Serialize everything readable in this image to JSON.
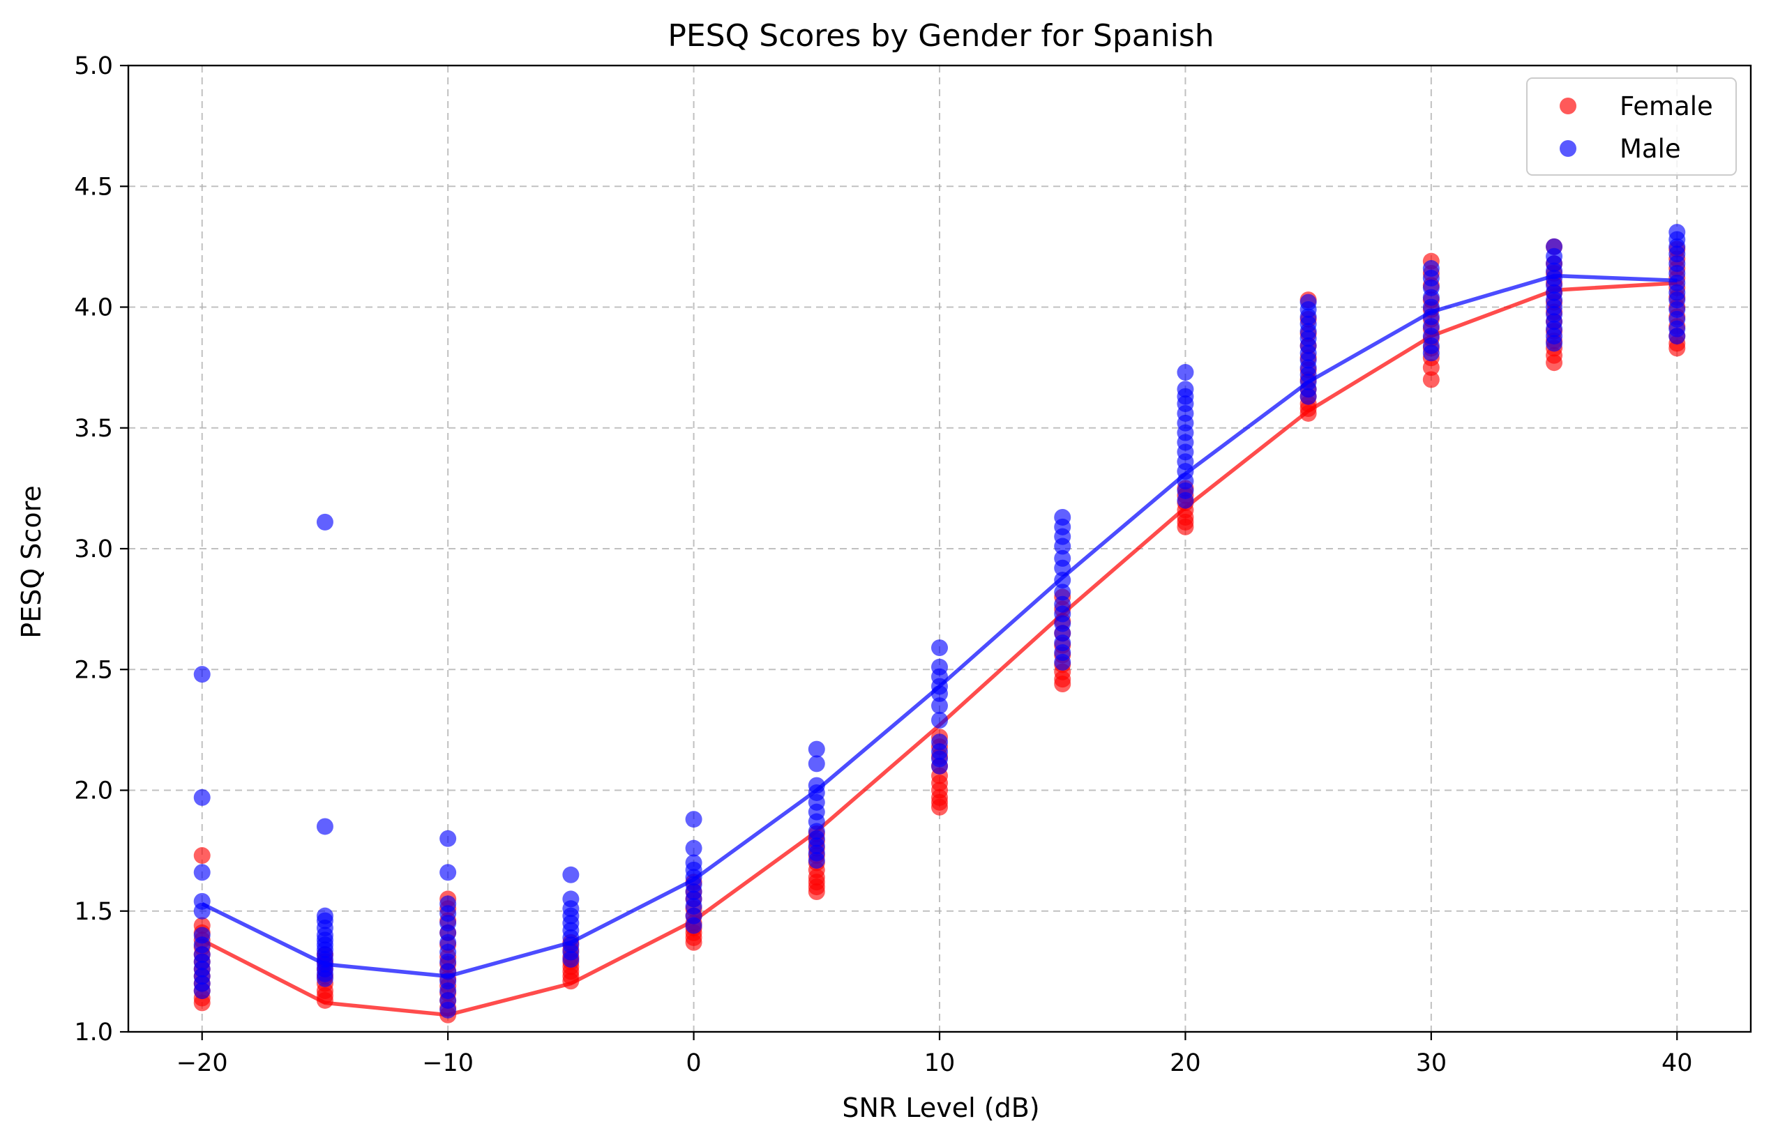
{
  "chart_data": {
    "type": "scatter",
    "title": "PESQ Scores by Gender for Spanish",
    "xlabel": "SNR Level (dB)",
    "ylabel": "PESQ Score",
    "xlim": [
      -23,
      43
    ],
    "ylim": [
      1.0,
      5.0
    ],
    "x_ticks": [
      -20,
      -10,
      0,
      10,
      20,
      30,
      40
    ],
    "x_tick_labels": [
      "−20",
      "−10",
      "0",
      "10",
      "20",
      "30",
      "40"
    ],
    "y_ticks": [
      1.0,
      1.5,
      2.0,
      2.5,
      3.0,
      3.5,
      4.0,
      4.5,
      5.0
    ],
    "y_tick_labels": [
      "1.0",
      "1.5",
      "2.0",
      "2.5",
      "3.0",
      "3.5",
      "4.0",
      "4.5",
      "5.0"
    ],
    "grid": true,
    "legend_position": "top-right",
    "series": [
      {
        "name": "Female",
        "color": "#ff0000",
        "mean_x": [
          -20,
          -15,
          -10,
          -5,
          0,
          5,
          10,
          15,
          20,
          25,
          30,
          35,
          40
        ],
        "mean_y": [
          1.38,
          1.12,
          1.07,
          1.2,
          1.46,
          1.83,
          2.27,
          2.73,
          3.17,
          3.57,
          3.88,
          4.07,
          4.1
        ],
        "points": [
          [
            -20,
            1.12
          ],
          [
            -20,
            1.14
          ],
          [
            -20,
            1.17
          ],
          [
            -20,
            1.2
          ],
          [
            -20,
            1.23
          ],
          [
            -20,
            1.26
          ],
          [
            -20,
            1.29
          ],
          [
            -20,
            1.32
          ],
          [
            -20,
            1.35
          ],
          [
            -20,
            1.38
          ],
          [
            -20,
            1.41
          ],
          [
            -20,
            1.44
          ],
          [
            -20,
            1.73
          ],
          [
            -15,
            1.13
          ],
          [
            -15,
            1.15
          ],
          [
            -15,
            1.17
          ],
          [
            -15,
            1.2
          ],
          [
            -15,
            1.23
          ],
          [
            -15,
            1.26
          ],
          [
            -15,
            1.29
          ],
          [
            -15,
            1.32
          ],
          [
            -10,
            1.07
          ],
          [
            -10,
            1.1
          ],
          [
            -10,
            1.13
          ],
          [
            -10,
            1.16
          ],
          [
            -10,
            1.19
          ],
          [
            -10,
            1.22
          ],
          [
            -10,
            1.25
          ],
          [
            -10,
            1.28
          ],
          [
            -10,
            1.31
          ],
          [
            -10,
            1.36
          ],
          [
            -10,
            1.41
          ],
          [
            -10,
            1.46
          ],
          [
            -10,
            1.51
          ],
          [
            -10,
            1.55
          ],
          [
            -5,
            1.21
          ],
          [
            -5,
            1.23
          ],
          [
            -5,
            1.25
          ],
          [
            -5,
            1.27
          ],
          [
            -5,
            1.29
          ],
          [
            -5,
            1.31
          ],
          [
            -5,
            1.34
          ],
          [
            -5,
            1.37
          ],
          [
            0,
            1.37
          ],
          [
            0,
            1.39
          ],
          [
            0,
            1.41
          ],
          [
            0,
            1.43
          ],
          [
            0,
            1.45
          ],
          [
            0,
            1.48
          ],
          [
            0,
            1.51
          ],
          [
            0,
            1.55
          ],
          [
            0,
            1.58
          ],
          [
            0,
            1.62
          ],
          [
            5,
            1.58
          ],
          [
            5,
            1.6
          ],
          [
            5,
            1.62
          ],
          [
            5,
            1.64
          ],
          [
            5,
            1.67
          ],
          [
            5,
            1.7
          ],
          [
            5,
            1.73
          ],
          [
            5,
            1.76
          ],
          [
            5,
            1.79
          ],
          [
            5,
            1.82
          ],
          [
            10,
            1.93
          ],
          [
            10,
            1.95
          ],
          [
            10,
            1.97
          ],
          [
            10,
            2.0
          ],
          [
            10,
            2.03
          ],
          [
            10,
            2.06
          ],
          [
            10,
            2.1
          ],
          [
            10,
            2.14
          ],
          [
            10,
            2.18
          ],
          [
            10,
            2.22
          ],
          [
            15,
            2.44
          ],
          [
            15,
            2.46
          ],
          [
            15,
            2.49
          ],
          [
            15,
            2.52
          ],
          [
            15,
            2.56
          ],
          [
            15,
            2.6
          ],
          [
            15,
            2.65
          ],
          [
            15,
            2.7
          ],
          [
            15,
            2.75
          ],
          [
            15,
            2.8
          ],
          [
            20,
            3.09
          ],
          [
            20,
            3.11
          ],
          [
            20,
            3.13
          ],
          [
            20,
            3.16
          ],
          [
            20,
            3.19
          ],
          [
            20,
            3.22
          ],
          [
            20,
            3.25
          ],
          [
            25,
            3.56
          ],
          [
            25,
            3.58
          ],
          [
            25,
            3.6
          ],
          [
            25,
            3.63
          ],
          [
            25,
            3.66
          ],
          [
            25,
            3.7
          ],
          [
            25,
            3.74
          ],
          [
            25,
            3.79
          ],
          [
            25,
            3.84
          ],
          [
            25,
            3.89
          ],
          [
            25,
            3.95
          ],
          [
            25,
            4.03
          ],
          [
            30,
            3.7
          ],
          [
            30,
            3.75
          ],
          [
            30,
            3.79
          ],
          [
            30,
            3.83
          ],
          [
            30,
            3.87
          ],
          [
            30,
            3.91
          ],
          [
            30,
            3.95
          ],
          [
            30,
            3.99
          ],
          [
            30,
            4.03
          ],
          [
            30,
            4.09
          ],
          [
            30,
            4.14
          ],
          [
            30,
            4.19
          ],
          [
            35,
            3.77
          ],
          [
            35,
            3.8
          ],
          [
            35,
            3.83
          ],
          [
            35,
            3.86
          ],
          [
            35,
            3.9
          ],
          [
            35,
            3.94
          ],
          [
            35,
            3.98
          ],
          [
            35,
            4.02
          ],
          [
            35,
            4.06
          ],
          [
            35,
            4.1
          ],
          [
            35,
            4.14
          ],
          [
            35,
            4.18
          ],
          [
            35,
            4.25
          ],
          [
            40,
            3.83
          ],
          [
            40,
            3.85
          ],
          [
            40,
            3.88
          ],
          [
            40,
            3.92
          ],
          [
            40,
            3.96
          ],
          [
            40,
            4.0
          ],
          [
            40,
            4.04
          ],
          [
            40,
            4.08
          ],
          [
            40,
            4.12
          ],
          [
            40,
            4.16
          ],
          [
            40,
            4.2
          ],
          [
            40,
            4.24
          ]
        ]
      },
      {
        "name": "Male",
        "color": "#0000ff",
        "mean_x": [
          -20,
          -15,
          -10,
          -5,
          0,
          5,
          10,
          15,
          20,
          25,
          30,
          35,
          40
        ],
        "mean_y": [
          1.53,
          1.28,
          1.23,
          1.37,
          1.63,
          2.0,
          2.43,
          2.88,
          3.31,
          3.69,
          3.98,
          4.13,
          4.11
        ],
        "points": [
          [
            -20,
            1.17
          ],
          [
            -20,
            1.2
          ],
          [
            -20,
            1.23
          ],
          [
            -20,
            1.26
          ],
          [
            -20,
            1.29
          ],
          [
            -20,
            1.32
          ],
          [
            -20,
            1.36
          ],
          [
            -20,
            1.4
          ],
          [
            -20,
            1.5
          ],
          [
            -20,
            1.54
          ],
          [
            -20,
            1.66
          ],
          [
            -20,
            1.97
          ],
          [
            -20,
            2.48
          ],
          [
            -15,
            1.22
          ],
          [
            -15,
            1.24
          ],
          [
            -15,
            1.26
          ],
          [
            -15,
            1.28
          ],
          [
            -15,
            1.3
          ],
          [
            -15,
            1.32
          ],
          [
            -15,
            1.34
          ],
          [
            -15,
            1.36
          ],
          [
            -15,
            1.38
          ],
          [
            -15,
            1.4
          ],
          [
            -15,
            1.43
          ],
          [
            -15,
            1.46
          ],
          [
            -15,
            1.48
          ],
          [
            -15,
            1.85
          ],
          [
            -15,
            3.11
          ],
          [
            -10,
            1.09
          ],
          [
            -10,
            1.13
          ],
          [
            -10,
            1.17
          ],
          [
            -10,
            1.21
          ],
          [
            -10,
            1.25
          ],
          [
            -10,
            1.29
          ],
          [
            -10,
            1.33
          ],
          [
            -10,
            1.37
          ],
          [
            -10,
            1.41
          ],
          [
            -10,
            1.45
          ],
          [
            -10,
            1.49
          ],
          [
            -10,
            1.53
          ],
          [
            -10,
            1.66
          ],
          [
            -10,
            1.8
          ],
          [
            -5,
            1.3
          ],
          [
            -5,
            1.33
          ],
          [
            -5,
            1.36
          ],
          [
            -5,
            1.39
          ],
          [
            -5,
            1.42
          ],
          [
            -5,
            1.45
          ],
          [
            -5,
            1.48
          ],
          [
            -5,
            1.51
          ],
          [
            -5,
            1.55
          ],
          [
            -5,
            1.65
          ],
          [
            0,
            1.44
          ],
          [
            0,
            1.48
          ],
          [
            0,
            1.52
          ],
          [
            0,
            1.55
          ],
          [
            0,
            1.58
          ],
          [
            0,
            1.61
          ],
          [
            0,
            1.64
          ],
          [
            0,
            1.67
          ],
          [
            0,
            1.7
          ],
          [
            0,
            1.76
          ],
          [
            0,
            1.88
          ],
          [
            5,
            1.71
          ],
          [
            5,
            1.74
          ],
          [
            5,
            1.77
          ],
          [
            5,
            1.8
          ],
          [
            5,
            1.83
          ],
          [
            5,
            1.87
          ],
          [
            5,
            1.91
          ],
          [
            5,
            1.95
          ],
          [
            5,
            1.99
          ],
          [
            5,
            2.02
          ],
          [
            5,
            2.11
          ],
          [
            5,
            2.17
          ],
          [
            10,
            2.1
          ],
          [
            10,
            2.13
          ],
          [
            10,
            2.16
          ],
          [
            10,
            2.2
          ],
          [
            10,
            2.29
          ],
          [
            10,
            2.35
          ],
          [
            10,
            2.4
          ],
          [
            10,
            2.43
          ],
          [
            10,
            2.47
          ],
          [
            10,
            2.51
          ],
          [
            10,
            2.59
          ],
          [
            15,
            2.53
          ],
          [
            15,
            2.57
          ],
          [
            15,
            2.61
          ],
          [
            15,
            2.65
          ],
          [
            15,
            2.69
          ],
          [
            15,
            2.73
          ],
          [
            15,
            2.77
          ],
          [
            15,
            2.82
          ],
          [
            15,
            2.87
          ],
          [
            15,
            2.92
          ],
          [
            15,
            2.96
          ],
          [
            15,
            3.01
          ],
          [
            15,
            3.05
          ],
          [
            15,
            3.09
          ],
          [
            15,
            3.13
          ],
          [
            20,
            3.2
          ],
          [
            20,
            3.24
          ],
          [
            20,
            3.28
          ],
          [
            20,
            3.32
          ],
          [
            20,
            3.36
          ],
          [
            20,
            3.4
          ],
          [
            20,
            3.44
          ],
          [
            20,
            3.48
          ],
          [
            20,
            3.52
          ],
          [
            20,
            3.56
          ],
          [
            20,
            3.6
          ],
          [
            20,
            3.63
          ],
          [
            20,
            3.66
          ],
          [
            20,
            3.73
          ],
          [
            25,
            3.63
          ],
          [
            25,
            3.66
          ],
          [
            25,
            3.69
          ],
          [
            25,
            3.72
          ],
          [
            25,
            3.75
          ],
          [
            25,
            3.78
          ],
          [
            25,
            3.81
          ],
          [
            25,
            3.84
          ],
          [
            25,
            3.87
          ],
          [
            25,
            3.9
          ],
          [
            25,
            3.93
          ],
          [
            25,
            3.96
          ],
          [
            25,
            3.99
          ],
          [
            25,
            4.02
          ],
          [
            30,
            3.81
          ],
          [
            30,
            3.84
          ],
          [
            30,
            3.88
          ],
          [
            30,
            3.92
          ],
          [
            30,
            3.96
          ],
          [
            30,
            4.0
          ],
          [
            30,
            4.04
          ],
          [
            30,
            4.08
          ],
          [
            30,
            4.12
          ],
          [
            30,
            4.16
          ],
          [
            35,
            3.85
          ],
          [
            35,
            3.88
          ],
          [
            35,
            3.91
          ],
          [
            35,
            3.94
          ],
          [
            35,
            3.97
          ],
          [
            35,
            4.0
          ],
          [
            35,
            4.03
          ],
          [
            35,
            4.06
          ],
          [
            35,
            4.09
          ],
          [
            35,
            4.12
          ],
          [
            35,
            4.15
          ],
          [
            35,
            4.18
          ],
          [
            35,
            4.21
          ],
          [
            35,
            4.25
          ],
          [
            40,
            3.88
          ],
          [
            40,
            3.91
          ],
          [
            40,
            3.95
          ],
          [
            40,
            3.99
          ],
          [
            40,
            4.03
          ],
          [
            40,
            4.06
          ],
          [
            40,
            4.1
          ],
          [
            40,
            4.14
          ],
          [
            40,
            4.18
          ],
          [
            40,
            4.22
          ],
          [
            40,
            4.25
          ],
          [
            40,
            4.28
          ],
          [
            40,
            4.31
          ]
        ]
      }
    ]
  }
}
